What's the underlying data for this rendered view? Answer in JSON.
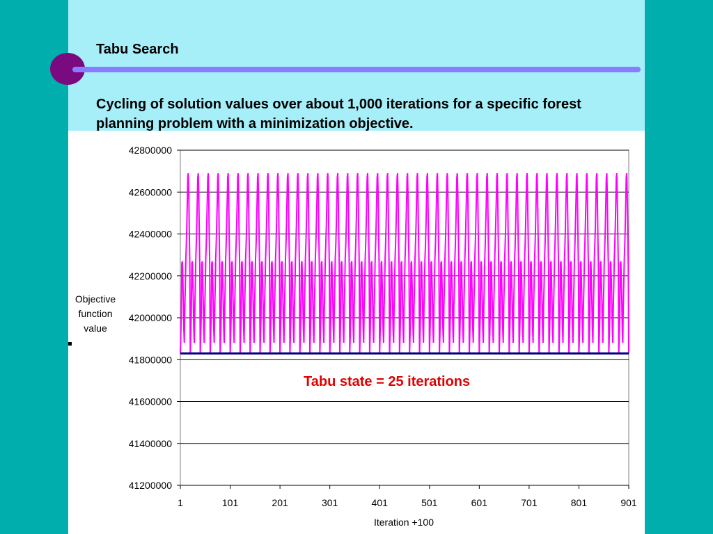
{
  "slide": {
    "title": "Tabu Search",
    "subtitle": "Cycling of solution values over about 1,000 iterations for a specific forest planning problem with a minimization objective."
  },
  "chart_data": {
    "type": "line",
    "title": "",
    "xlabel": "Iteration +100",
    "ylabel": "Objective function value",
    "xlim": [
      1,
      901
    ],
    "ylim": [
      41200000,
      42800000
    ],
    "x_ticks": [
      "1",
      "101",
      "201",
      "301",
      "401",
      "501",
      "601",
      "701",
      "801",
      "901"
    ],
    "y_ticks": [
      "42800000",
      "42600000",
      "42400000",
      "42200000",
      "42000000",
      "41800000",
      "41600000",
      "41400000",
      "41200000"
    ],
    "grid": true,
    "annotation": "Tabu state = 25 iterations",
    "series": [
      {
        "color": "#ff00ff",
        "cycle_length_iterations": 20,
        "cycle_values": [
          41830000,
          41920000,
          42020000,
          42260000,
          42270000,
          42180000,
          42080000,
          41950000,
          41880000,
          42050000,
          42150000,
          42280000,
          42350000,
          42440000,
          42550000,
          42670000,
          42690000,
          42580000,
          42400000,
          42250000
        ]
      },
      {
        "color": "#000080",
        "constant_value": 41830000
      }
    ]
  }
}
